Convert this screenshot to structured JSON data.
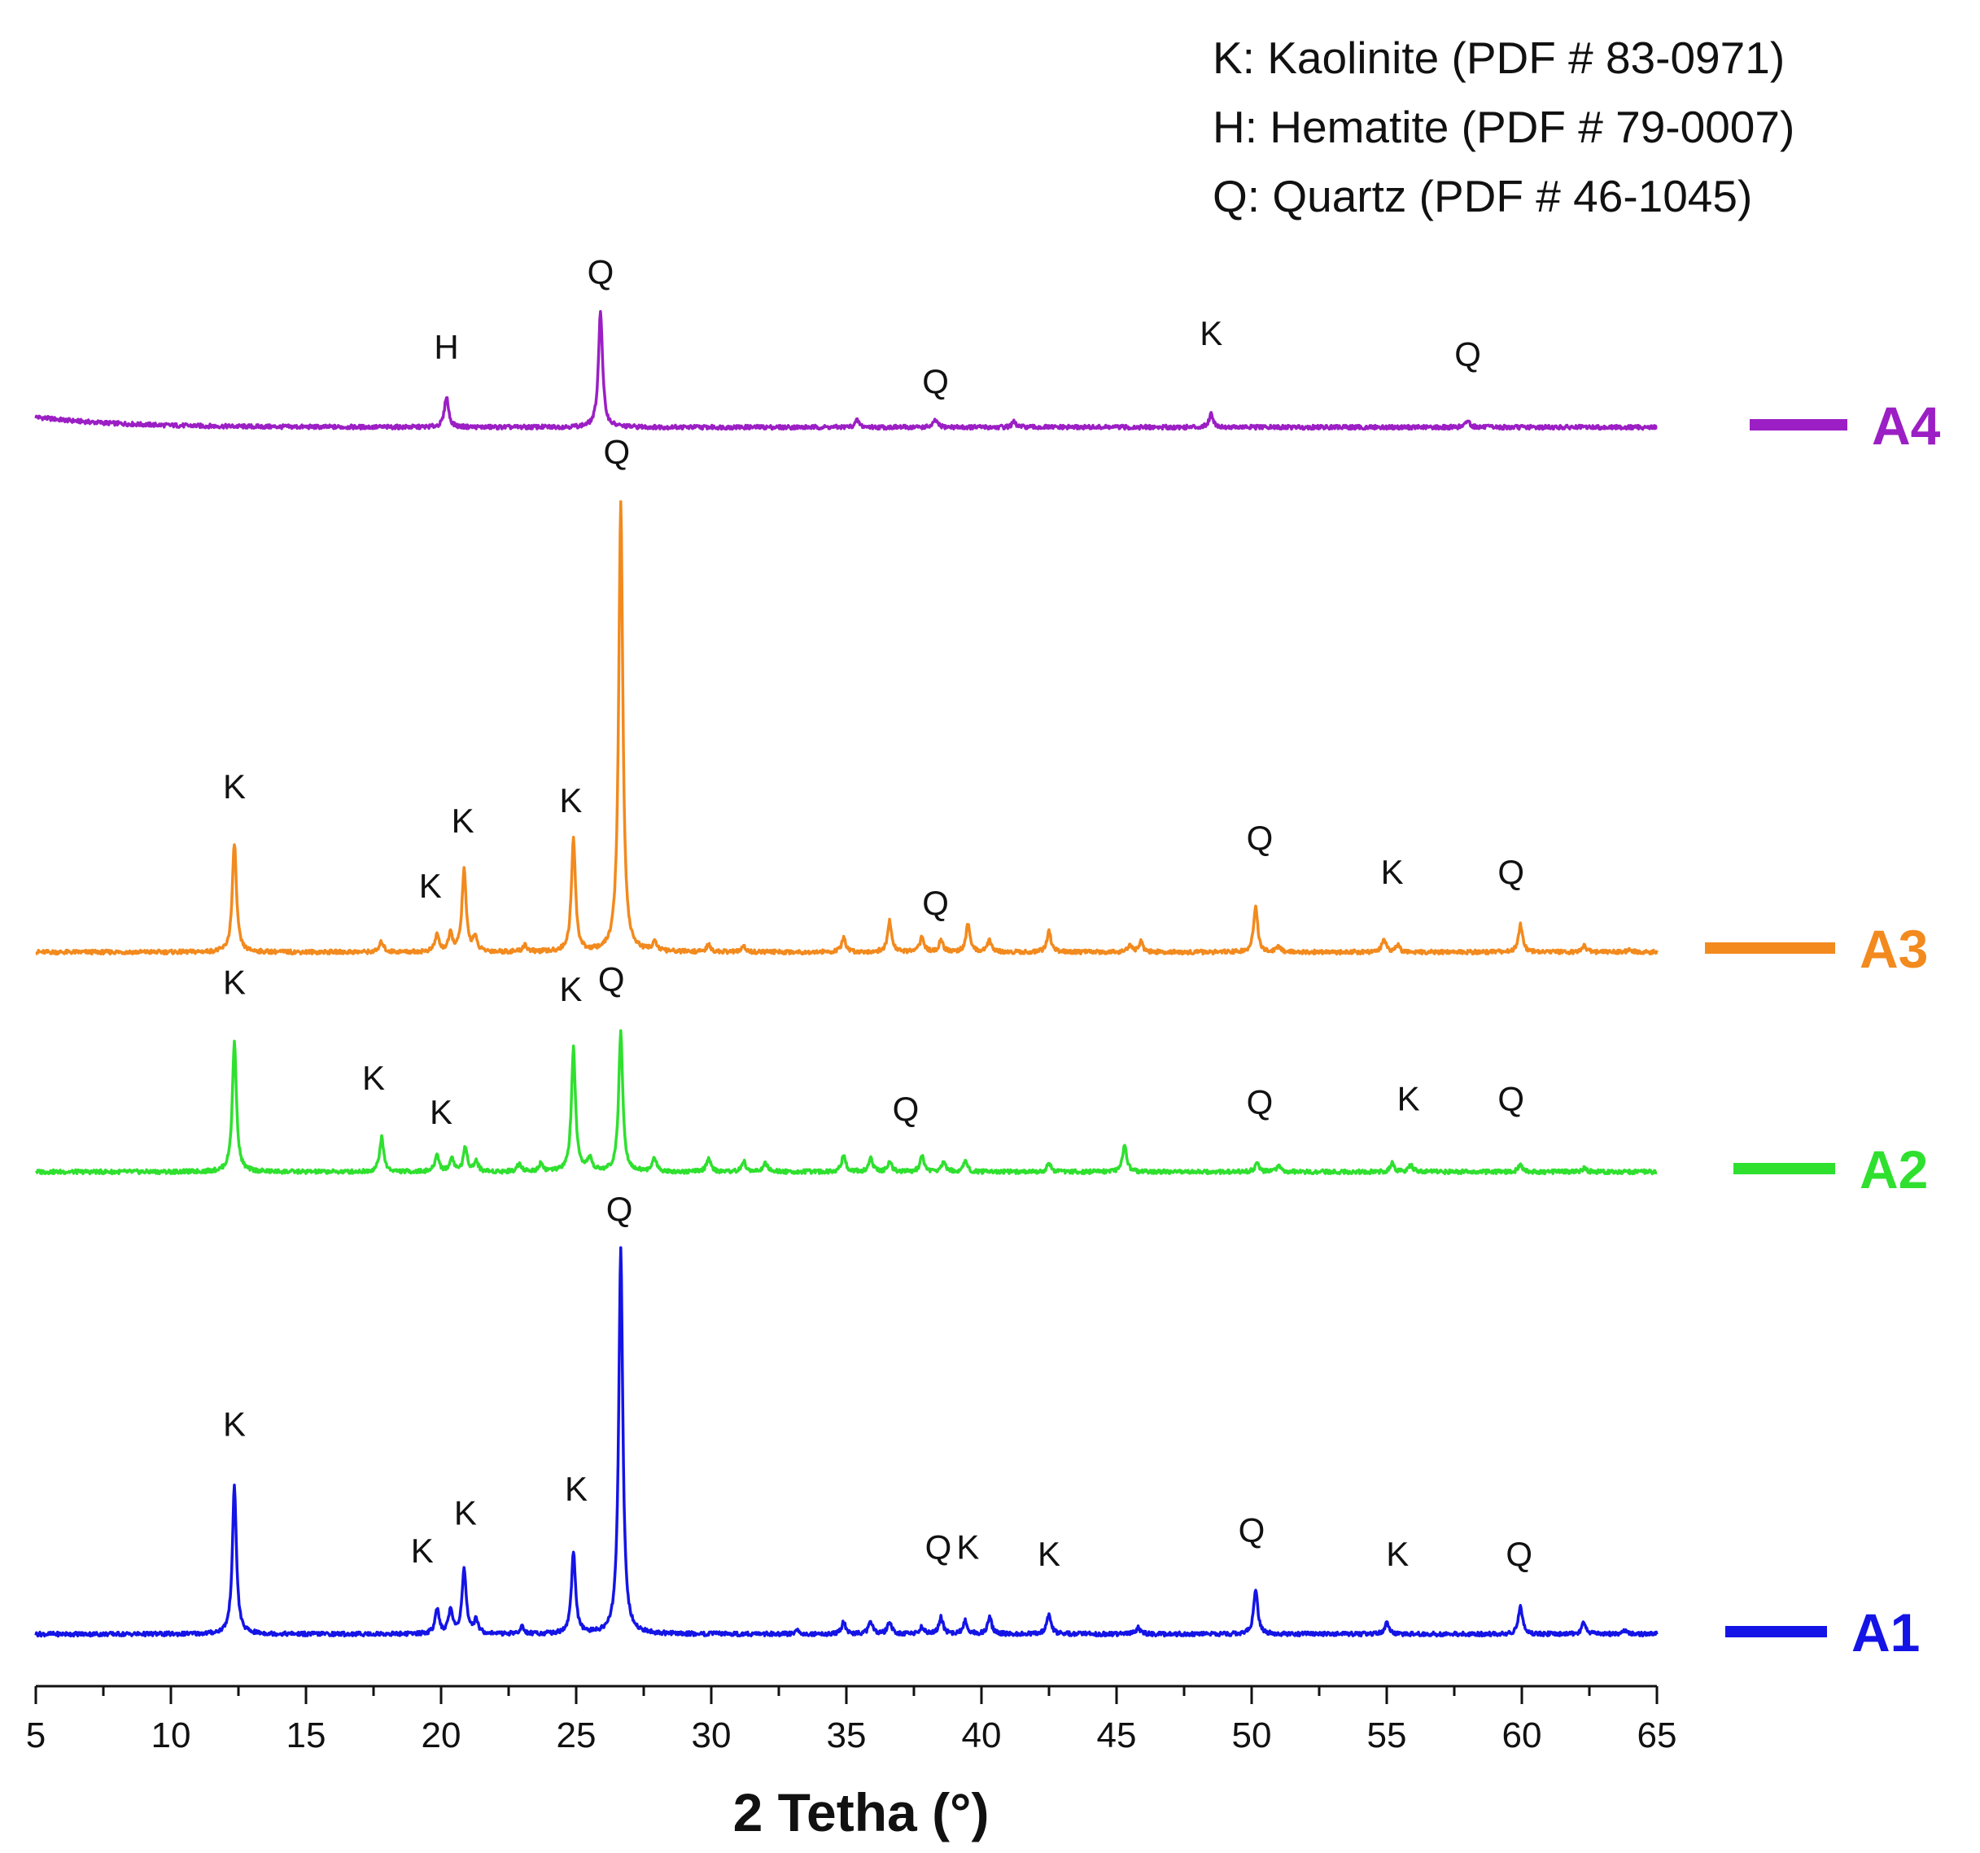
{
  "chart_data": {
    "type": "line",
    "title": "",
    "xlabel": "2 Tetha (°)",
    "ylabel": "",
    "xlim": [
      5,
      65
    ],
    "xticks": [
      5,
      10,
      15,
      20,
      25,
      30,
      35,
      40,
      45,
      50,
      55,
      60,
      65
    ],
    "reference_lines": [
      "K: Kaolinite (PDF # 83-0971)",
      "H: Hematite (PDF # 79-0007)",
      "Q: Quartz (PDF # 46-1045)"
    ],
    "series": [
      {
        "name": "A4",
        "color": "#9b1fc4",
        "peaks": [
          [
            20.2,
            0.09
          ],
          [
            25.9,
            0.34
          ],
          [
            35.4,
            0.02
          ],
          [
            38.3,
            0.02
          ],
          [
            41.2,
            0.015
          ],
          [
            48.5,
            0.04
          ],
          [
            58.0,
            0.02
          ]
        ],
        "labels": [
          {
            "text": "H",
            "x": 20.2,
            "h": 0.2
          },
          {
            "text": "Q",
            "x": 25.9,
            "h": 0.42
          },
          {
            "text": "Q",
            "x": 38.3,
            "h": 0.1
          },
          {
            "text": "K",
            "x": 48.5,
            "h": 0.24
          },
          {
            "text": "Q",
            "x": 58.0,
            "h": 0.18
          }
        ]
      },
      {
        "name": "A3",
        "color": "#f28a1e",
        "peaks": [
          [
            12.35,
            0.32
          ],
          [
            17.8,
            0.03
          ],
          [
            19.85,
            0.05
          ],
          [
            20.35,
            0.05
          ],
          [
            20.85,
            0.24
          ],
          [
            21.25,
            0.04
          ],
          [
            23.1,
            0.02
          ],
          [
            24.9,
            0.33
          ],
          [
            26.65,
            1.32
          ],
          [
            27.9,
            0.03
          ],
          [
            29.9,
            0.02
          ],
          [
            31.2,
            0.015
          ],
          [
            34.9,
            0.04
          ],
          [
            36.6,
            0.09
          ],
          [
            37.8,
            0.045
          ],
          [
            38.5,
            0.035
          ],
          [
            39.5,
            0.08
          ],
          [
            40.3,
            0.035
          ],
          [
            42.5,
            0.06
          ],
          [
            45.5,
            0.02
          ],
          [
            45.9,
            0.03
          ],
          [
            50.15,
            0.13
          ],
          [
            51.0,
            0.015
          ],
          [
            54.9,
            0.04
          ],
          [
            55.4,
            0.02
          ],
          [
            59.95,
            0.08
          ],
          [
            62.3,
            0.02
          ],
          [
            64.0,
            0.01
          ]
        ],
        "labels": [
          {
            "text": "K",
            "x": 12.35,
            "h": 0.45
          },
          {
            "text": "K",
            "x": 19.6,
            "h": 0.16
          },
          {
            "text": "K",
            "x": 20.8,
            "h": 0.35
          },
          {
            "text": "K",
            "x": 24.8,
            "h": 0.41
          },
          {
            "text": "Q",
            "x": 26.5,
            "h": 1.43
          },
          {
            "text": "Q",
            "x": 38.3,
            "h": 0.11
          },
          {
            "text": "Q",
            "x": 50.3,
            "h": 0.3
          },
          {
            "text": "K",
            "x": 55.2,
            "h": 0.2
          },
          {
            "text": "Q",
            "x": 59.6,
            "h": 0.2
          }
        ]
      },
      {
        "name": "A2",
        "color": "#2fe02f",
        "peaks": [
          [
            12.35,
            0.38
          ],
          [
            17.8,
            0.1
          ],
          [
            19.85,
            0.05
          ],
          [
            20.4,
            0.04
          ],
          [
            20.9,
            0.07
          ],
          [
            21.3,
            0.03
          ],
          [
            22.9,
            0.025
          ],
          [
            23.7,
            0.025
          ],
          [
            24.9,
            0.36
          ],
          [
            25.5,
            0.04
          ],
          [
            26.65,
            0.41
          ],
          [
            27.9,
            0.04
          ],
          [
            29.9,
            0.04
          ],
          [
            31.2,
            0.03
          ],
          [
            32.0,
            0.025
          ],
          [
            34.9,
            0.05
          ],
          [
            35.9,
            0.04
          ],
          [
            36.6,
            0.03
          ],
          [
            37.8,
            0.045
          ],
          [
            38.6,
            0.03
          ],
          [
            39.4,
            0.03
          ],
          [
            42.5,
            0.025
          ],
          [
            45.3,
            0.08
          ],
          [
            50.2,
            0.025
          ],
          [
            51.0,
            0.015
          ],
          [
            55.2,
            0.025
          ],
          [
            55.9,
            0.02
          ],
          [
            59.95,
            0.02
          ],
          [
            62.3,
            0.01
          ]
        ],
        "labels": [
          {
            "text": "K",
            "x": 12.35,
            "h": 0.52
          },
          {
            "text": "K",
            "x": 17.5,
            "h": 0.24
          },
          {
            "text": "K",
            "x": 20.0,
            "h": 0.14
          },
          {
            "text": "K",
            "x": 24.8,
            "h": 0.5
          },
          {
            "text": "Q",
            "x": 26.3,
            "h": 0.53
          },
          {
            "text": "Q",
            "x": 37.2,
            "h": 0.15
          },
          {
            "text": "Q",
            "x": 50.3,
            "h": 0.17
          },
          {
            "text": "K",
            "x": 55.8,
            "h": 0.18
          },
          {
            "text": "Q",
            "x": 59.6,
            "h": 0.18
          }
        ]
      },
      {
        "name": "A1",
        "color": "#1414e6",
        "peaks": [
          [
            12.35,
            0.43
          ],
          [
            19.85,
            0.07
          ],
          [
            20.35,
            0.07
          ],
          [
            20.85,
            0.19
          ],
          [
            21.3,
            0.04
          ],
          [
            23.0,
            0.02
          ],
          [
            24.9,
            0.24
          ],
          [
            26.65,
            1.13
          ],
          [
            33.2,
            0.01
          ],
          [
            34.9,
            0.035
          ],
          [
            35.9,
            0.035
          ],
          [
            36.6,
            0.035
          ],
          [
            37.8,
            0.02
          ],
          [
            38.5,
            0.05
          ],
          [
            39.4,
            0.04
          ],
          [
            40.3,
            0.05
          ],
          [
            42.5,
            0.06
          ],
          [
            45.8,
            0.02
          ],
          [
            50.15,
            0.13
          ],
          [
            55.0,
            0.035
          ],
          [
            59.95,
            0.08
          ],
          [
            62.3,
            0.035
          ],
          [
            63.8,
            0.01
          ]
        ],
        "labels": [
          {
            "text": "K",
            "x": 12.35,
            "h": 0.58
          },
          {
            "text": "K",
            "x": 19.3,
            "h": 0.21
          },
          {
            "text": "K",
            "x": 20.9,
            "h": 0.32
          },
          {
            "text": "K",
            "x": 25.0,
            "h": 0.39
          },
          {
            "text": "Q",
            "x": 26.6,
            "h": 1.21
          },
          {
            "text": "Q",
            "x": 38.4,
            "h": 0.22
          },
          {
            "text": "K",
            "x": 39.5,
            "h": 0.22
          },
          {
            "text": "K",
            "x": 42.5,
            "h": 0.2
          },
          {
            "text": "Q",
            "x": 50.0,
            "h": 0.27
          },
          {
            "text": "K",
            "x": 55.4,
            "h": 0.2
          },
          {
            "text": "Q",
            "x": 59.9,
            "h": 0.2
          }
        ]
      }
    ]
  }
}
